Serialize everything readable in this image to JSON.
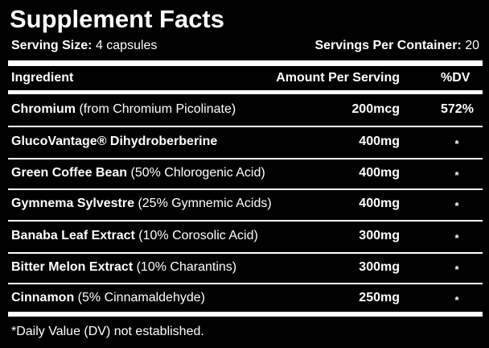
{
  "header": {
    "title": "Supplement Facts",
    "serving_size_label": "Serving Size:",
    "serving_size": "4 capsules",
    "servings_label": "Servings Per Container:",
    "servings": "20"
  },
  "table": {
    "columns": [
      "Ingredient",
      "Amount Per Serving",
      "%DV"
    ],
    "rows": [
      {
        "name": "Chromium",
        "detail": "(from Chromium Picolinate)",
        "amount": "200mcg",
        "dv": "572%"
      },
      {
        "name": "GlucoVantage® Dihydroberberine",
        "amount": "400mg",
        "dv": "*"
      },
      {
        "name": "Green Coffee Bean",
        "detail": "(50% Chlorogenic Acid)",
        "amount": "400mg",
        "dv": "*"
      },
      {
        "name": "Gymnema Sylvestre",
        "detail": "(25% Gymnemic Acids)",
        "amount": "400mg",
        "dv": "*"
      },
      {
        "name": "Banaba Leaf Extract",
        "detail": "(10% Corosolic Acid)",
        "amount": "300mg",
        "dv": "*"
      },
      {
        "name": "Bitter Melon Extract",
        "detail": "(10% Charantins)",
        "amount": "300mg",
        "dv": "*"
      },
      {
        "name": "Cinnamon",
        "detail": "(5% Cinnamaldehyde)",
        "amount": "250mg",
        "dv": "*"
      }
    ]
  },
  "footnote": "*Daily Value (DV) not established."
}
